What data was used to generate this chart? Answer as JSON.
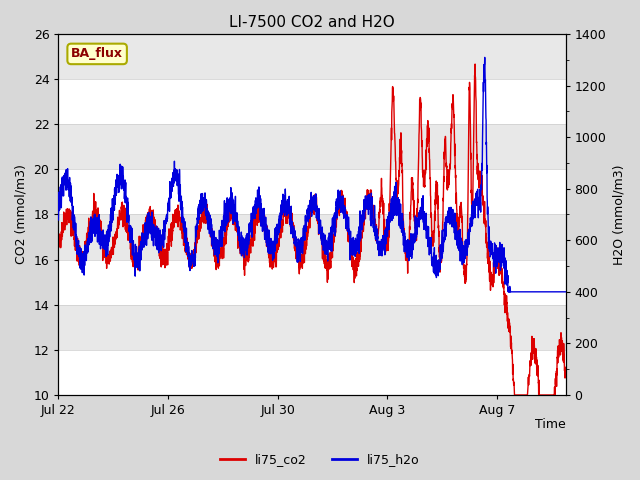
{
  "title": "LI-7500 CO2 and H2O",
  "xlabel": "Time",
  "ylabel_left": "CO2 (mmol/m3)",
  "ylabel_right": "H2O (mmol/m3)",
  "ylim_left": [
    10,
    26
  ],
  "ylim_right": [
    0,
    1400
  ],
  "yticks_left": [
    10,
    12,
    14,
    16,
    18,
    20,
    22,
    24,
    26
  ],
  "yticks_right": [
    0,
    200,
    400,
    600,
    800,
    1000,
    1200,
    1400
  ],
  "xtick_labels": [
    "Jul 22",
    "Jul 26",
    "Jul 30",
    "Aug 3",
    "Aug 7"
  ],
  "annotation_text": "BA_flux",
  "annotation_bg": "#ffffcc",
  "annotation_border": "#aaaa00",
  "legend_labels": [
    "li75_co2",
    "li75_h2o"
  ],
  "co2_color": "#dd0000",
  "h2o_color": "#0000dd",
  "fig_bg_color": "#d8d8d8",
  "plot_bg_color": "#e8e8e8",
  "band_color_light": "#f5f5f5",
  "band_color_dark": "#e0e0e0",
  "title_fontsize": 11,
  "axis_label_fontsize": 9,
  "tick_fontsize": 9,
  "legend_fontsize": 9,
  "linewidth": 1.0,
  "n_points": 3000
}
